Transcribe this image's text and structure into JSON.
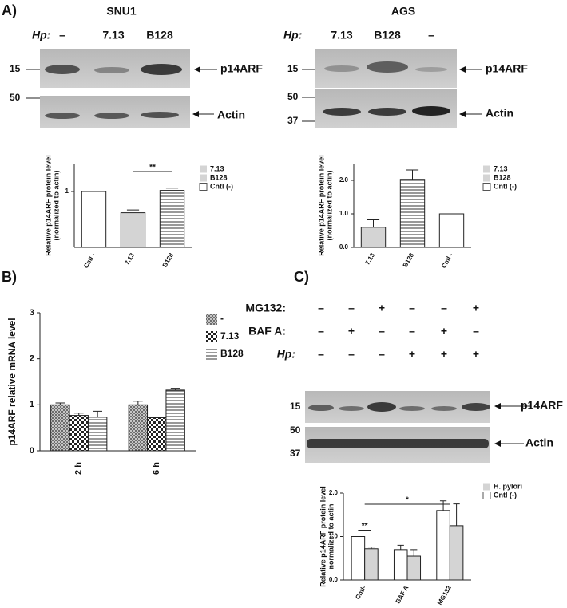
{
  "panel_labels": [
    "A)",
    "B)",
    "C)"
  ],
  "blots": [
    {
      "title": "SNU1",
      "hp_label": "Hp:",
      "lanes": [
        "–",
        "7.13",
        "B128"
      ],
      "markers": [
        "15",
        "50"
      ],
      "bands": [
        "p14ARF",
        "Actin"
      ]
    },
    {
      "title": "AGS",
      "hp_label": "Hp:",
      "lanes": [
        "7.13",
        "B128",
        "–"
      ],
      "markers": [
        "15",
        "50",
        "37"
      ],
      "bands": [
        "p14ARF",
        "Actin"
      ]
    },
    {
      "treatments": [
        {
          "name": "MG132:",
          "signs": [
            "–",
            "–",
            "+",
            "–",
            "–",
            "+"
          ]
        },
        {
          "name": "BAF A:",
          "signs": [
            "–",
            "+",
            "–",
            "–",
            "+",
            "–"
          ]
        },
        {
          "name": "Hp:",
          "signs": [
            "–",
            "–",
            "–",
            "+",
            "+",
            "+"
          ]
        }
      ],
      "markers": [
        "15",
        "50",
        "37"
      ],
      "bands": [
        "p14ARF",
        "Actin"
      ]
    }
  ],
  "chart_data": [
    {
      "type": "bar",
      "y_label": [
        "Relative p14ARF protein level",
        "(normalized to actin)"
      ],
      "categories": [
        "Cntl -",
        "7.13",
        "B128"
      ],
      "series": [
        {
          "values": [
            1.0,
            0.62,
            1.02
          ],
          "errors": [
            null,
            0.05,
            0.04
          ],
          "fills": [
            "white",
            "light",
            "stripes"
          ]
        }
      ],
      "legend": [
        {
          "name": "7.13",
          "fill": "light"
        },
        {
          "name": "B128",
          "fill": "light"
        },
        {
          "name": "Cntl (-)",
          "fill": "white"
        }
      ],
      "ylim": [
        0,
        1.5
      ],
      "yticks": [
        1
      ],
      "annotations": [
        "**"
      ]
    },
    {
      "type": "bar",
      "y_label": [
        "Relative p14ARF protein level",
        "(normalized to actin)"
      ],
      "categories": [
        "7.13",
        "B128",
        "Cntl -"
      ],
      "series": [
        {
          "values": [
            0.6,
            2.03,
            1.0
          ],
          "errors": [
            0.22,
            0.28,
            null
          ],
          "fills": [
            "light",
            "stripes",
            "white"
          ]
        }
      ],
      "legend": [
        {
          "name": "7.13",
          "fill": "light"
        },
        {
          "name": "B128",
          "fill": "light"
        },
        {
          "name": "Cntl (-)",
          "fill": "white"
        }
      ],
      "ylim": [
        0,
        2.5
      ],
      "yticks": [
        {
          "value": 0,
          "label": "0.0"
        },
        {
          "value": 1,
          "label": "1.0"
        },
        {
          "value": 2,
          "label": "2.0"
        }
      ]
    },
    {
      "type": "bar",
      "y_label": [
        "p14ARF relative mRNA level"
      ],
      "categories": [
        "2 h",
        "6 h"
      ],
      "series": [
        {
          "name": "-",
          "fill": "cross",
          "values": [
            1.0,
            1.0
          ],
          "errors": [
            0.04,
            0.08
          ]
        },
        {
          "name": "7.13",
          "fill": "check",
          "values": [
            0.77,
            0.72
          ],
          "errors": [
            0.05,
            null
          ]
        },
        {
          "name": "B128",
          "fill": "stripes",
          "values": [
            0.73,
            1.32
          ],
          "errors": [
            0.13,
            0.04
          ]
        }
      ],
      "ylim": [
        0,
        3
      ],
      "yticks": [
        0,
        1,
        2,
        3
      ]
    },
    {
      "type": "bar",
      "y_label": [
        "Relative p14ARF protein level",
        "normalized to actin"
      ],
      "categories": [
        "Cntl-",
        "BAF A",
        "MG132"
      ],
      "series": [
        {
          "name": "Cntl (-)",
          "fill": "white",
          "values": [
            1.0,
            0.7,
            1.6
          ],
          "errors": [
            null,
            0.1,
            0.22
          ]
        },
        {
          "name": "H. pylori",
          "fill": "light",
          "values": [
            0.72,
            0.55,
            1.25
          ],
          "errors": [
            0.04,
            0.15,
            0.5
          ]
        }
      ],
      "ylim": [
        0,
        2.0
      ],
      "yticks": [
        {
          "value": 0,
          "label": "0.0"
        },
        {
          "value": 1,
          "label": "1.0"
        },
        {
          "value": 2,
          "label": "2.0"
        }
      ],
      "annotations": [
        "**",
        "*"
      ]
    }
  ]
}
